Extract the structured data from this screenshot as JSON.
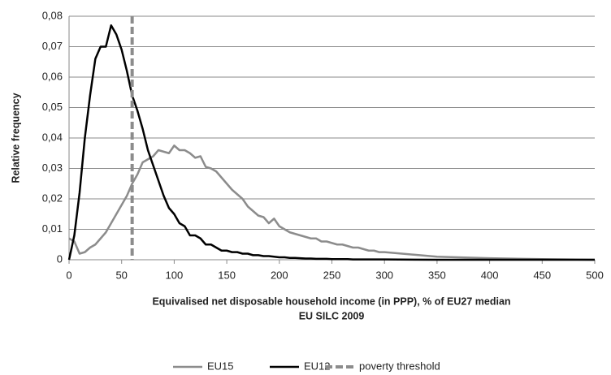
{
  "chart_data": {
    "type": "line",
    "x_label": "Equivalised  net disposable  household  income  (in PPP), % of EU27 median",
    "x_label_2": "EU SILC 2009",
    "y_label": "Relative frequency",
    "x": [
      0,
      5,
      10,
      15,
      20,
      25,
      30,
      35,
      40,
      45,
      50,
      55,
      60,
      65,
      70,
      75,
      80,
      85,
      90,
      95,
      100,
      105,
      110,
      115,
      120,
      125,
      130,
      135,
      140,
      145,
      150,
      155,
      160,
      165,
      170,
      175,
      180,
      185,
      190,
      195,
      200,
      205,
      210,
      215,
      220,
      225,
      230,
      235,
      240,
      245,
      250,
      255,
      260,
      265,
      270,
      275,
      280,
      285,
      290,
      295,
      300,
      350,
      400,
      450,
      500
    ],
    "series": [
      {
        "name": "EU15",
        "color": "#8c8c8c",
        "values": [
          0.007,
          0.006,
          0.002,
          0.0025,
          0.004,
          0.005,
          0.007,
          0.009,
          0.012,
          0.015,
          0.018,
          0.021,
          0.025,
          0.028,
          0.032,
          0.033,
          0.034,
          0.036,
          0.0355,
          0.035,
          0.0375,
          0.036,
          0.036,
          0.035,
          0.0335,
          0.034,
          0.0305,
          0.03,
          0.029,
          0.027,
          0.025,
          0.023,
          0.0215,
          0.02,
          0.0175,
          0.016,
          0.0145,
          0.014,
          0.012,
          0.0135,
          0.011,
          0.01,
          0.009,
          0.0085,
          0.008,
          0.0075,
          0.007,
          0.007,
          0.006,
          0.006,
          0.0055,
          0.005,
          0.005,
          0.0045,
          0.004,
          0.004,
          0.0035,
          0.003,
          0.003,
          0.0025,
          0.0025,
          0.001,
          0.0005,
          0.0002,
          0
        ]
      },
      {
        "name": "EU12",
        "color": "#000000",
        "values": [
          0,
          0.008,
          0.022,
          0.04,
          0.054,
          0.066,
          0.07,
          0.07,
          0.077,
          0.074,
          0.069,
          0.062,
          0.054,
          0.049,
          0.043,
          0.036,
          0.031,
          0.026,
          0.021,
          0.017,
          0.015,
          0.012,
          0.011,
          0.008,
          0.008,
          0.007,
          0.005,
          0.005,
          0.004,
          0.003,
          0.003,
          0.0025,
          0.0025,
          0.002,
          0.002,
          0.0015,
          0.0015,
          0.0012,
          0.0012,
          0.001,
          0.0008,
          0.0008,
          0.0006,
          0.0006,
          0.0005,
          0.0004,
          0.0004,
          0.0003,
          0.0003,
          0.0003,
          0.0002,
          0.0002,
          0.0002,
          0.0002,
          0.0001,
          0.0001,
          0.0001,
          0.0001,
          0.0001,
          0.0001,
          0.0001,
          0,
          0,
          0,
          0
        ]
      }
    ],
    "reference_lines": [
      {
        "name": "poverty threshold",
        "x": 60,
        "color": "#8c8c8c",
        "dashed": true
      }
    ],
    "xlim": [
      0,
      500
    ],
    "xticks": [
      0,
      50,
      100,
      150,
      200,
      250,
      300,
      350,
      400,
      450,
      500
    ],
    "ylim": [
      0,
      0.08
    ],
    "yticks": [
      0,
      {
        "value": 0.01,
        "label": "0,01"
      },
      {
        "value": 0.02,
        "label": "0,02"
      },
      {
        "value": 0.03,
        "label": "0,03"
      },
      {
        "value": 0.04,
        "label": "0,04"
      },
      {
        "value": 0.05,
        "label": "0,05"
      },
      {
        "value": 0.06,
        "label": "0,06"
      },
      {
        "value": 0.07,
        "label": "0,07"
      },
      {
        "value": 0.08,
        "label": "0,08"
      }
    ],
    "grid": true,
    "legend": "bottom"
  }
}
